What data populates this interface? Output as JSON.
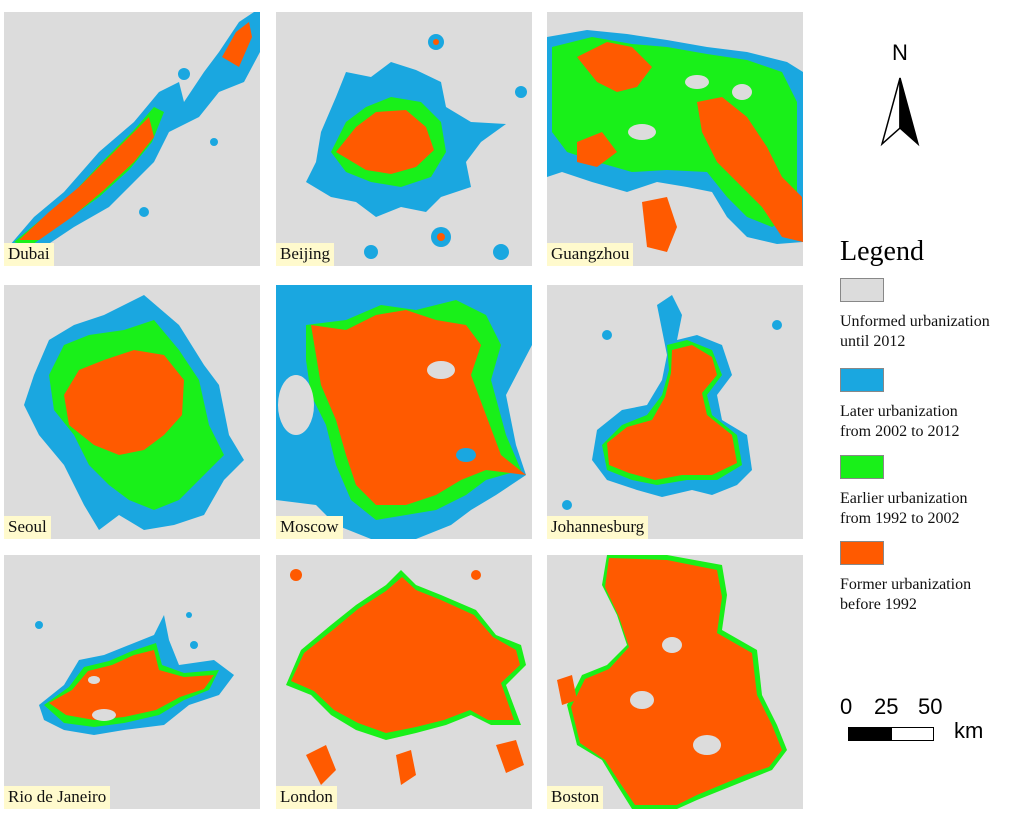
{
  "colors": {
    "unformed": "#dcdcdc",
    "later": "#1aa7e0",
    "earlier": "#19f019",
    "former": "#ff5a00",
    "label_bg": "#fffacd"
  },
  "cities": [
    {
      "name": "Dubai"
    },
    {
      "name": "Beijing"
    },
    {
      "name": "Guangzhou"
    },
    {
      "name": "Seoul"
    },
    {
      "name": "Moscow"
    },
    {
      "name": "Johannesburg"
    },
    {
      "name": "Rio de Janeiro"
    },
    {
      "name": "London"
    },
    {
      "name": "Boston"
    }
  ],
  "north_arrow": {
    "letter": "N",
    "icon": "north-arrow-icon"
  },
  "legend": {
    "title": "Legend",
    "items": [
      {
        "line1": "Unformed urbanization",
        "line2": "until 2012",
        "color": "#dcdcdc"
      },
      {
        "line1": "Later urbanization",
        "line2": "from 2002 to 2012",
        "color": "#1aa7e0"
      },
      {
        "line1": "Earlier urbanization",
        "line2": "from 1992 to 2002",
        "color": "#19f019"
      },
      {
        "line1": "Former urbanization",
        "line2": "before 1992",
        "color": "#ff5a00"
      }
    ]
  },
  "scale": {
    "ticks": [
      "0",
      "25",
      "50"
    ],
    "unit": "km"
  }
}
